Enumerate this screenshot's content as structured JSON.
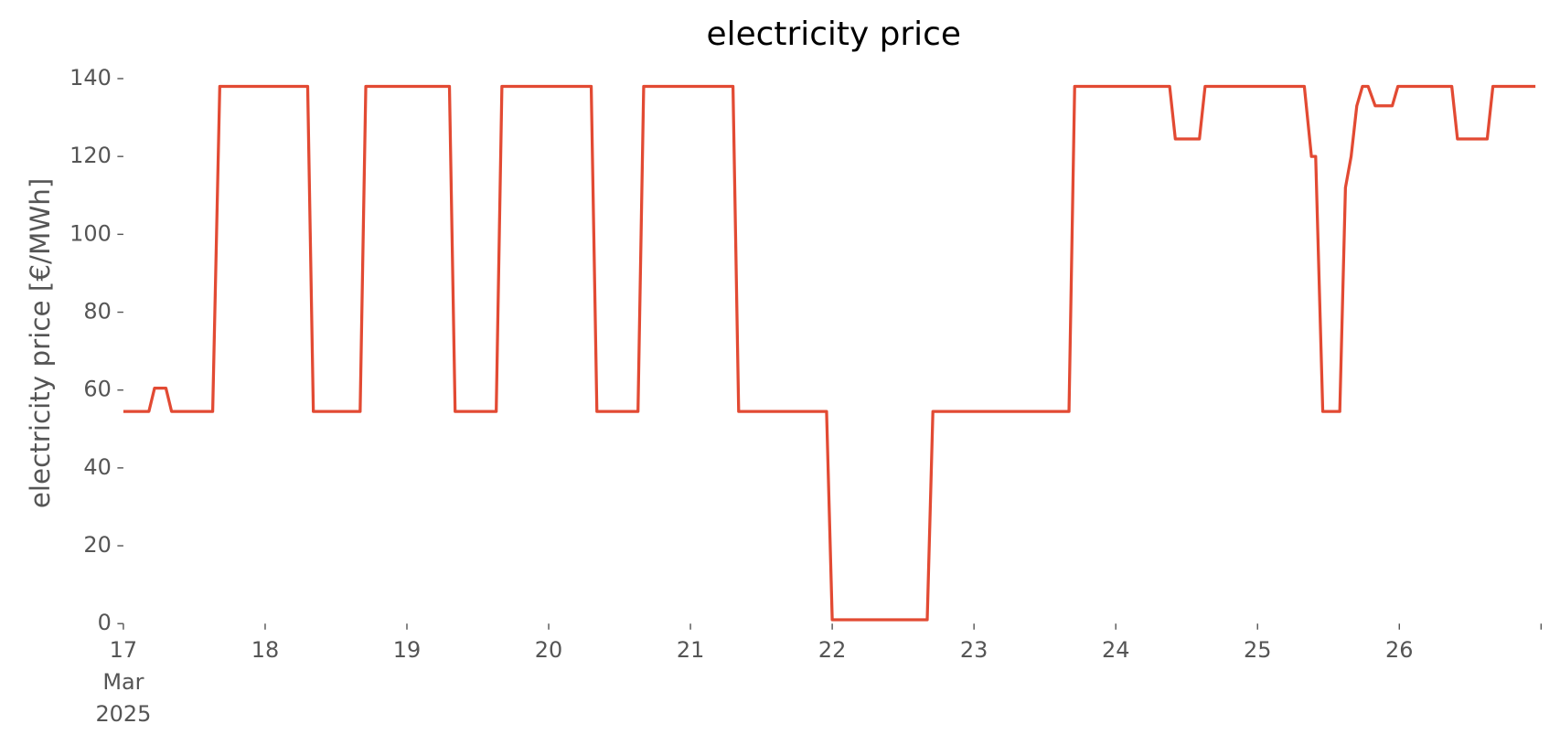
{
  "chart_data": {
    "type": "line",
    "title": "electricity price",
    "ylabel": "electricity price [€/MWh]",
    "xlim": [
      17,
      27
    ],
    "xticks": [
      {
        "value": 17,
        "label": "17\nMar\n2025"
      },
      18,
      19,
      20,
      21,
      22,
      23,
      24,
      25,
      26,
      {
        "value": 27,
        "label": null
      }
    ],
    "ylim": [
      0,
      140
    ],
    "yticks": [
      0,
      20,
      40,
      60,
      80,
      100,
      120,
      140
    ],
    "grid": false,
    "series": [
      {
        "name": "electricity price",
        "color": "#e24a33",
        "x": [
          17,
          17.18,
          17.22,
          17.3,
          17.34,
          17.63,
          17.68,
          18.3,
          18.34,
          18.67,
          18.71,
          19.3,
          19.34,
          19.63,
          19.67,
          20.3,
          20.34,
          20.63,
          20.67,
          21.3,
          21.34,
          21.96,
          22.0,
          22.3,
          22.67,
          22.71,
          23.67,
          23.71,
          24.38,
          24.42,
          24.59,
          24.63,
          25.33,
          25.38,
          25.41,
          25.46,
          25.58,
          25.62,
          25.66,
          25.7,
          25.74,
          25.78,
          25.83,
          25.95,
          25.99,
          26.37,
          26.41,
          26.62,
          26.66,
          26.96
        ],
        "values": [
          54.5,
          54.5,
          60.5,
          60.5,
          54.5,
          54.5,
          138,
          138,
          54.5,
          54.5,
          138,
          138,
          54.5,
          54.5,
          138,
          138,
          54.5,
          54.5,
          138,
          138,
          54.5,
          54.5,
          1,
          1,
          1,
          54.5,
          54.5,
          138,
          138,
          124.5,
          124.5,
          138,
          138,
          120,
          120,
          54.5,
          54.5,
          112,
          120,
          133,
          138,
          138,
          133,
          133,
          138,
          138,
          124.5,
          124.5,
          138,
          138
        ]
      }
    ]
  }
}
